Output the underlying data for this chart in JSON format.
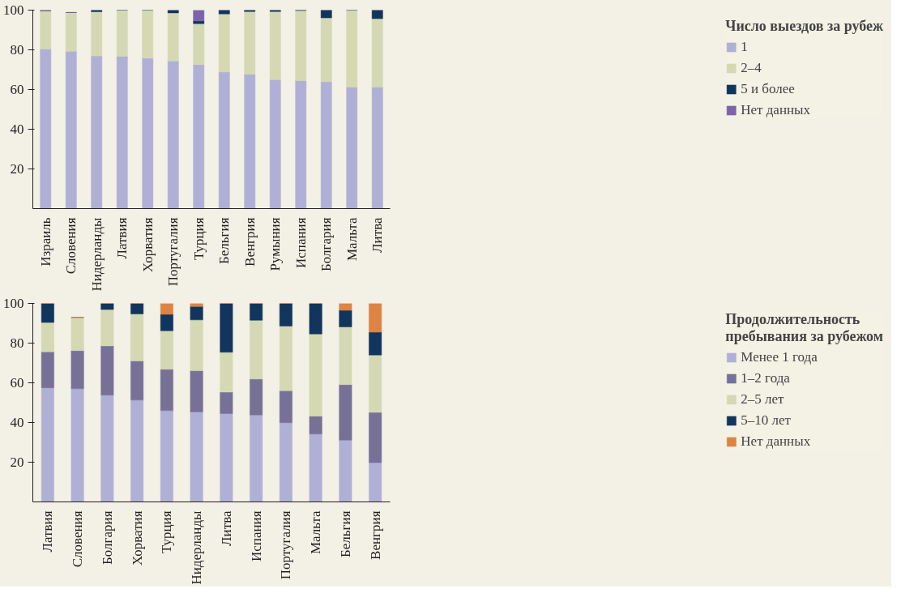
{
  "chart_data": [
    {
      "type": "bar",
      "stacked": true,
      "legend": "right",
      "legend_title": "Число выездов за рубеж",
      "ylim": [
        0,
        100
      ],
      "yticks": [
        20,
        40,
        60,
        80,
        100
      ],
      "grid": false,
      "categories": [
        "Израиль",
        "Словения",
        "Нидерланды",
        "Латвия",
        "Хорватия",
        "Португалия",
        "Турция",
        "Бельгия",
        "Венгрия",
        "Румыния",
        "Испания",
        "Болгария",
        "Мальта",
        "Литва"
      ],
      "series": [
        {
          "name": "1",
          "color": "#b0b0d6",
          "values": [
            80.4,
            79.3,
            76.9,
            76.7,
            75.8,
            74.4,
            72.6,
            68.8,
            67.7,
            65.0,
            64.5,
            63.9,
            61.2,
            61.2
          ]
        },
        {
          "name": "2–4",
          "color": "#d4d9b4",
          "values": [
            19.3,
            19.5,
            22.3,
            23.3,
            24.2,
            24.2,
            20.6,
            29.3,
            31.6,
            34.3,
            35.3,
            32.2,
            38.8,
            34.5
          ]
        },
        {
          "name": "5 и более",
          "color": "#12355e",
          "values": [
            0,
            0,
            0.8,
            0,
            0,
            1.4,
            1.3,
            1.9,
            0.7,
            0.7,
            0.2,
            3.9,
            0,
            4.3
          ]
        },
        {
          "name": "Нет данных",
          "color": "#7b65a8",
          "values": [
            0.3,
            0,
            0,
            0,
            0,
            0,
            5.5,
            0,
            0,
            0,
            0,
            0,
            0,
            0
          ]
        }
      ]
    },
    {
      "type": "bar",
      "stacked": true,
      "legend": "right",
      "legend_title": "Продолжительность\nпребывания за рубежом",
      "ylim": [
        0,
        100
      ],
      "yticks": [
        20,
        40,
        60,
        80,
        100
      ],
      "grid": false,
      "categories": [
        "Латвия",
        "Словения",
        "Болгария",
        "Хорватия",
        "Турция",
        "Нидерланды",
        "Литва",
        "Испания",
        "Португалия",
        "Мальта",
        "Бельгия",
        "Венгрия"
      ],
      "series": [
        {
          "name": "Менее 1 года",
          "color": "#b0b0d6",
          "values": [
            57.5,
            57.0,
            53.8,
            51.3,
            46.0,
            45.3,
            44.5,
            43.8,
            39.9,
            34.2,
            31.1,
            19.8
          ]
        },
        {
          "name": "1–2 года",
          "color": "#777198",
          "values": [
            18.1,
            19.2,
            24.8,
            19.7,
            20.8,
            20.8,
            10.8,
            18.1,
            16.1,
            9.0,
            28.0,
            25.3
          ]
        },
        {
          "name": "2–5 лет",
          "color": "#d4d9b4",
          "values": [
            14.8,
            16.8,
            18.3,
            23.7,
            19.4,
            25.6,
            20.1,
            29.6,
            32.6,
            41.4,
            29.1,
            28.9
          ]
        },
        {
          "name": "5–10 лет",
          "color": "#12355e",
          "values": [
            9.6,
            0,
            3.1,
            5.3,
            8.3,
            6.8,
            24.6,
            8.5,
            11.4,
            15.4,
            8.3,
            11.5
          ]
        },
        {
          "name": "Нет данных",
          "color": "#dc8444",
          "values": [
            0,
            0,
            0,
            0,
            5.5,
            1.5,
            0,
            0,
            0,
            0,
            3.5,
            14.5
          ]
        }
      ]
    }
  ]
}
